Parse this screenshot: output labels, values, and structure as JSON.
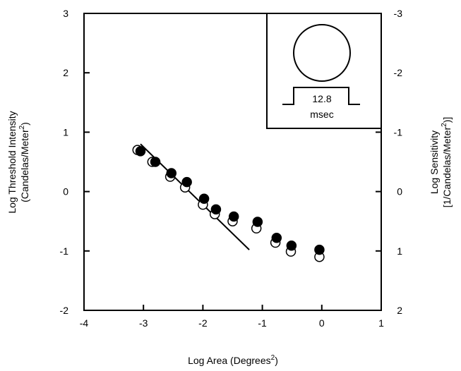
{
  "chart_data": {
    "type": "scatter",
    "title": "",
    "xlabel": "Log Area (Degrees",
    "xlabel_sup": "2",
    "xlabel_tail": ")",
    "ylabel_line1": "Log Threshold Intensity",
    "ylabel_line2": "(Candelas/Meter",
    "ylabel_line2_sup": "2",
    "ylabel_line2_tail": ")",
    "y2label_line1": "Log Sensitivity",
    "y2label_line2": "[1/Candelas/Meter",
    "y2label_line2_sup": "2",
    "y2label_line2_tail": ")]",
    "xlim": [
      -4,
      1
    ],
    "ylim": [
      -2,
      3
    ],
    "x_ticks": [
      -4,
      -3,
      -2,
      -1,
      0,
      1
    ],
    "x_tick_labels": [
      "-4",
      "-3",
      "-2",
      "-1",
      "0",
      "1"
    ],
    "y_ticks": [
      3,
      2,
      1,
      0,
      -1,
      -2
    ],
    "y_tick_labels": [
      "3",
      "2",
      "1",
      "0",
      "-1",
      "-2"
    ],
    "y2_tick_labels": [
      "-3",
      "-2",
      "-1",
      "0",
      "1",
      "2"
    ],
    "grid": false,
    "series": [
      {
        "marker": "open-circle",
        "points": [
          {
            "x": -3.1,
            "y": 0.7
          },
          {
            "x": -2.85,
            "y": 0.5
          },
          {
            "x": -2.55,
            "y": 0.25
          },
          {
            "x": -2.3,
            "y": 0.07
          },
          {
            "x": -2.0,
            "y": -0.22
          },
          {
            "x": -1.8,
            "y": -0.38
          },
          {
            "x": -1.5,
            "y": -0.5
          },
          {
            "x": -1.1,
            "y": -0.62
          },
          {
            "x": -0.78,
            "y": -0.86
          },
          {
            "x": -0.52,
            "y": -1.01
          },
          {
            "x": -0.04,
            "y": -1.1
          }
        ]
      },
      {
        "marker": "filled-circle",
        "points": [
          {
            "x": -3.05,
            "y": 0.68
          },
          {
            "x": -2.8,
            "y": 0.5
          },
          {
            "x": -2.53,
            "y": 0.31
          },
          {
            "x": -2.27,
            "y": 0.16
          },
          {
            "x": -1.98,
            "y": -0.12
          },
          {
            "x": -1.78,
            "y": -0.3
          },
          {
            "x": -1.48,
            "y": -0.42
          },
          {
            "x": -1.08,
            "y": -0.51
          },
          {
            "x": -0.76,
            "y": -0.78
          },
          {
            "x": -0.51,
            "y": -0.91
          },
          {
            "x": -0.04,
            "y": -0.98
          }
        ]
      }
    ],
    "fit_line": {
      "x": [
        -3.05,
        -1.22
      ],
      "y": [
        0.8,
        -0.98
      ]
    },
    "inset": {
      "label_value": "12.8",
      "label_unit": "msec"
    }
  }
}
